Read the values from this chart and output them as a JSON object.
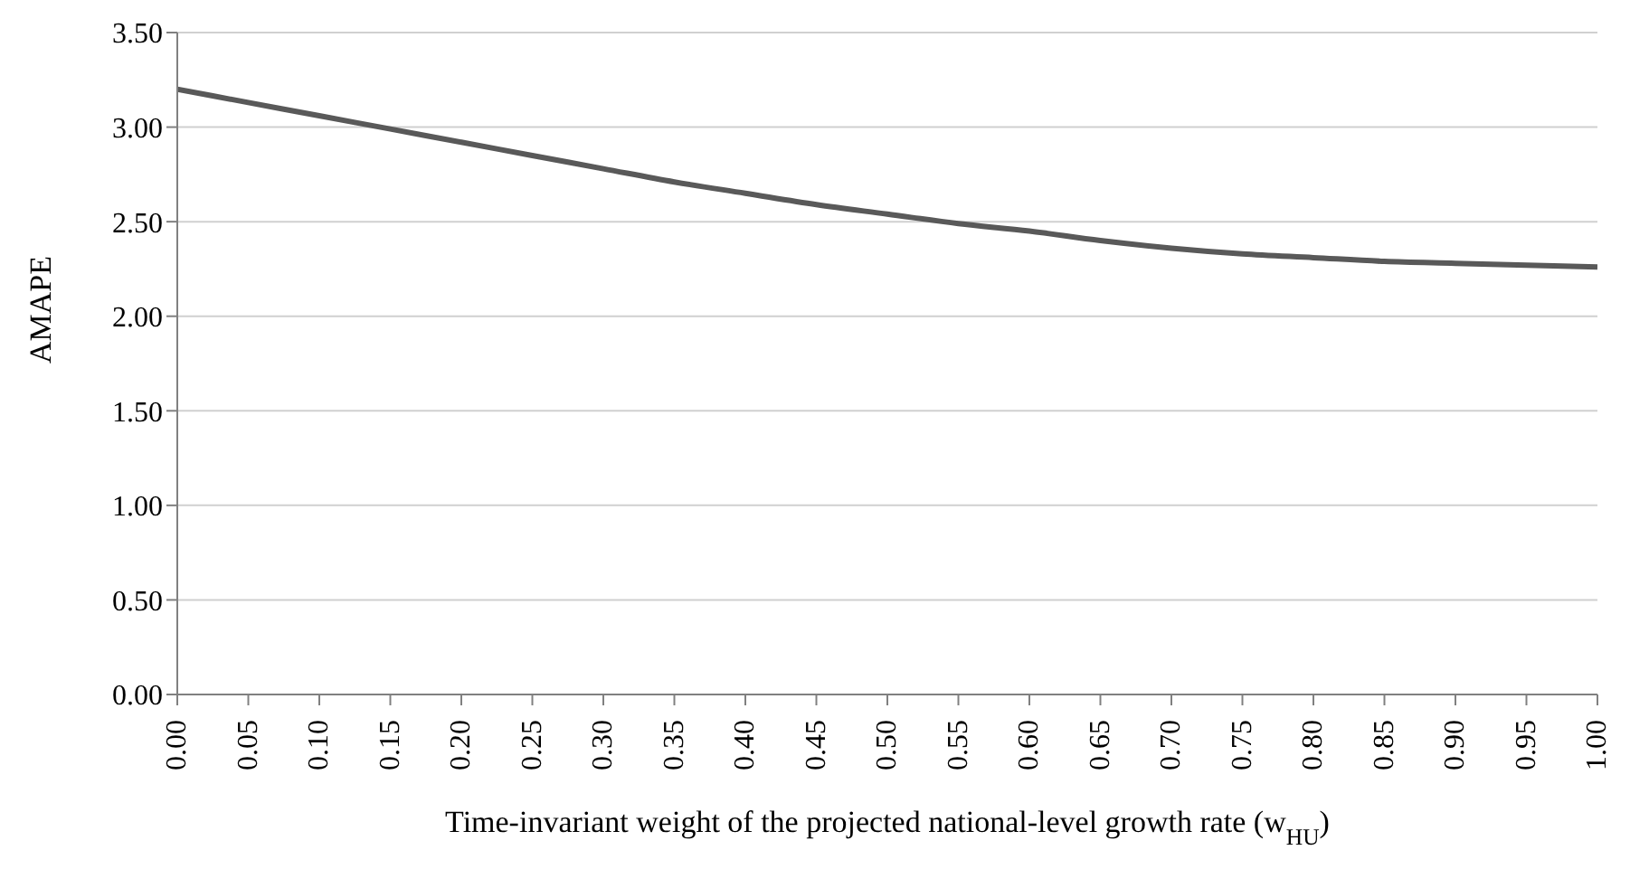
{
  "chart_data": {
    "type": "line",
    "xlabel": "Time-invariant weight of the projected national-level growth rate (w$_{HU}$)",
    "ylabel": "AMAPE",
    "x": [
      0,
      0.05,
      0.1,
      0.15,
      0.2,
      0.25,
      0.3,
      0.35,
      0.4,
      0.45,
      0.5,
      0.55,
      0.6,
      0.65,
      0.7,
      0.75,
      0.8,
      0.85,
      0.9,
      0.95,
      1
    ],
    "series": [
      {
        "color": "#595959",
        "values": [
          3.2,
          3.13,
          3.06,
          2.99,
          2.92,
          2.85,
          2.78,
          2.71,
          2.65,
          2.59,
          2.54,
          2.49,
          2.45,
          2.4,
          2.36,
          2.33,
          2.31,
          2.29,
          2.28,
          2.27,
          2.26
        ]
      }
    ],
    "xlim": [
      0,
      1
    ],
    "xticks": [
      {
        "value": 0,
        "label": "0.00"
      },
      {
        "value": 0.05,
        "label": "0.05"
      },
      {
        "value": 0.1,
        "label": "0.10"
      },
      {
        "value": 0.15,
        "label": "0.15"
      },
      {
        "value": 0.2,
        "label": "0.20"
      },
      {
        "value": 0.25,
        "label": "0.25"
      },
      {
        "value": 0.3,
        "label": "0.30"
      },
      {
        "value": 0.35,
        "label": "0.35"
      },
      {
        "value": 0.4,
        "label": "0.40"
      },
      {
        "value": 0.45,
        "label": "0.45"
      },
      {
        "value": 0.5,
        "label": "0.50"
      },
      {
        "value": 0.55,
        "label": "0.55"
      },
      {
        "value": 0.6,
        "label": "0.60"
      },
      {
        "value": 0.65,
        "label": "0.65"
      },
      {
        "value": 0.7,
        "label": "0.70"
      },
      {
        "value": 0.75,
        "label": "0.75"
      },
      {
        "value": 0.8,
        "label": "0.80"
      },
      {
        "value": 0.85,
        "label": "0.85"
      },
      {
        "value": 0.9,
        "label": "0.90"
      },
      {
        "value": 0.95,
        "label": "0.95"
      },
      {
        "value": 1,
        "label": "1.00"
      }
    ],
    "ylim": [
      0,
      3.5
    ],
    "yticks": [
      {
        "value": 0,
        "label": "0.00"
      },
      {
        "value": 0.5,
        "label": "0.50"
      },
      {
        "value": 1,
        "label": "1.00"
      },
      {
        "value": 1.5,
        "label": "1.50"
      },
      {
        "value": 2,
        "label": "2.00"
      },
      {
        "value": 2.5,
        "label": "2.50"
      },
      {
        "value": 3,
        "label": "3.00"
      },
      {
        "value": 3.5,
        "label": "3.50"
      }
    ],
    "grid": "y",
    "marker": "none",
    "line_style": "solid",
    "legend": false
  }
}
